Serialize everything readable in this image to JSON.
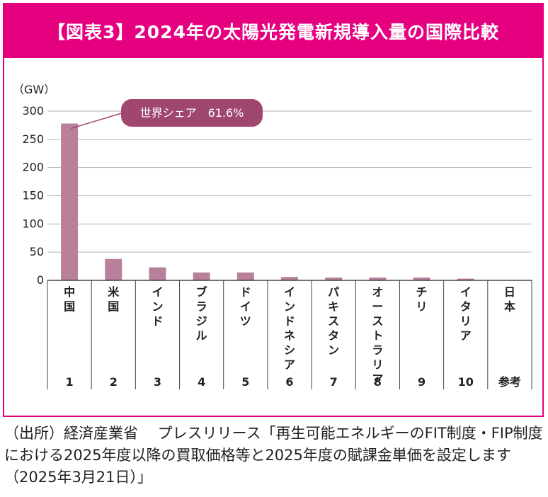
{
  "header": {
    "title": "【図表3】2024年の太陽光発電新規導入量の国際比較"
  },
  "chart_data": {
    "type": "bar",
    "title": "【図表3】2024年の太陽光発電新規導入量の国際比較",
    "ylabel": "（GW）",
    "xlabel": "",
    "ylim": [
      0,
      300
    ],
    "yticks": [
      0,
      50,
      100,
      150,
      200,
      250,
      300
    ],
    "grid": true,
    "categories": [
      "中国",
      "米国",
      "インド",
      "ブラジル",
      "ドイツ",
      "インドネシア",
      "パキスタン",
      "オーストラリア",
      "チリ",
      "イタリア",
      "日本"
    ],
    "ranks": [
      "1",
      "2",
      "3",
      "4",
      "5",
      "6",
      "7",
      "8",
      "9",
      "10",
      "参考"
    ],
    "values": [
      278,
      38,
      23,
      14,
      14,
      6,
      5,
      5,
      5,
      3,
      null
    ],
    "annotation": {
      "text": "世界シェア　61.6%",
      "target": "中国"
    },
    "colors": {
      "bar": "#b9809c",
      "callout": "#a0476f",
      "grid": "#b3b3b3",
      "accent": "#e4007f"
    }
  },
  "source": {
    "text": "（出所）経済産業省　 プレスリリース「再生可能エネルギーのFIT制度・FIP制度における2025年度以降の買取価格等と2025年度の賦課金単価を設定します（2025年3月21日）」"
  }
}
